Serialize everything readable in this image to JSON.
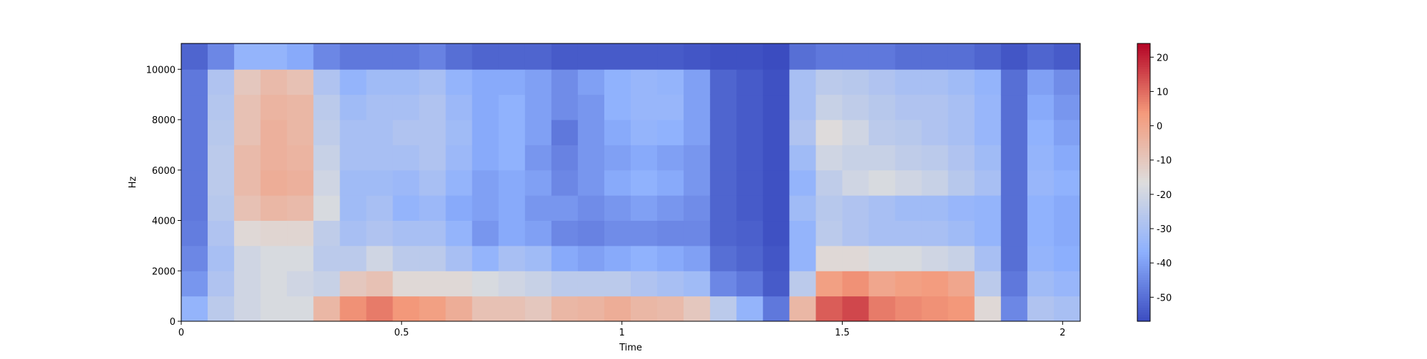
{
  "chart_data": {
    "type": "spectrogram",
    "xlabel": "Time",
    "ylabel": "Hz",
    "colormap": "coolwarm",
    "xlim": [
      0,
      2.04
    ],
    "xticks": [
      0,
      0.5,
      1,
      1.5,
      2
    ],
    "ylim": [
      0,
      11025
    ],
    "yticks": [
      0,
      2000,
      4000,
      6000,
      8000,
      10000
    ],
    "x": [
      0.03,
      0.09,
      0.15,
      0.21,
      0.27,
      0.33,
      0.39,
      0.45,
      0.51,
      0.57,
      0.63,
      0.69,
      0.75,
      0.81,
      0.87,
      0.93,
      0.99,
      1.05,
      1.11,
      1.17,
      1.23,
      1.29,
      1.35,
      1.41,
      1.47,
      1.53,
      1.59,
      1.65,
      1.71,
      1.77,
      1.83,
      1.89,
      1.95,
      2.01
    ],
    "y": [
      500,
      1500,
      2500,
      3500,
      4500,
      5500,
      6500,
      7500,
      8500,
      9500,
      10500
    ],
    "values": [
      [
        -35,
        -42,
        -45,
        -47,
        -48,
        -48,
        -48,
        -48,
        -48,
        -48,
        -52
      ],
      [
        -25,
        -28,
        -30,
        -28,
        -26,
        -25,
        -25,
        -26,
        -27,
        -28,
        -45
      ],
      [
        -20,
        -20,
        -20,
        -15,
        -8,
        -6,
        -6,
        -8,
        -8,
        -10,
        -35
      ],
      [
        -18,
        -18,
        -18,
        -14,
        -5,
        -2,
        -3,
        -3,
        -4,
        -6,
        -35
      ],
      [
        -18,
        -20,
        -18,
        -14,
        -6,
        -3,
        -4,
        -5,
        -5,
        -8,
        -38
      ],
      [
        -5,
        -22,
        -25,
        -24,
        -18,
        -20,
        -22,
        -24,
        -25,
        -28,
        -45
      ],
      [
        5,
        -10,
        -25,
        -30,
        -32,
        -32,
        -30,
        -30,
        -32,
        -35,
        -48
      ],
      [
        8,
        -8,
        -20,
        -28,
        -30,
        -32,
        -30,
        -30,
        -30,
        -32,
        -48
      ],
      [
        4,
        -15,
        -25,
        -30,
        -35,
        -33,
        -30,
        -28,
        -30,
        -32,
        -48
      ],
      [
        2,
        -15,
        -25,
        -30,
        -33,
        -30,
        -28,
        -28,
        -28,
        -30,
        -46
      ],
      [
        -2,
        -15,
        -30,
        -35,
        -38,
        -35,
        -33,
        -32,
        -33,
        -35,
        -50
      ],
      [
        -8,
        -18,
        -35,
        -42,
        -40,
        -40,
        -38,
        -38,
        -38,
        -38,
        -52
      ],
      [
        -8,
        -20,
        -30,
        -38,
        -38,
        -38,
        -36,
        -36,
        -36,
        -38,
        -52
      ],
      [
        -10,
        -22,
        -32,
        -40,
        -42,
        -40,
        -42,
        -40,
        -40,
        -40,
        -52
      ],
      [
        -5,
        -25,
        -38,
        -45,
        -42,
        -45,
        -46,
        -48,
        -44,
        -44,
        -54
      ],
      [
        -4,
        -25,
        -40,
        -46,
        -44,
        -42,
        -42,
        -42,
        -42,
        -40,
        -54
      ],
      [
        -2,
        -25,
        -38,
        -44,
        -42,
        -38,
        -40,
        -38,
        -36,
        -36,
        -54
      ],
      [
        -5,
        -28,
        -36,
        -44,
        -40,
        -36,
        -38,
        -35,
        -34,
        -34,
        -54
      ],
      [
        -6,
        -30,
        -38,
        -45,
        -42,
        -38,
        -40,
        -36,
        -34,
        -35,
        -54
      ],
      [
        -10,
        -32,
        -40,
        -45,
        -44,
        -42,
        -42,
        -40,
        -40,
        -40,
        -55
      ],
      [
        -25,
        -45,
        -50,
        -52,
        -52,
        -52,
        -52,
        -52,
        -52,
        -52,
        -56
      ],
      [
        -35,
        -48,
        -52,
        -53,
        -54,
        -54,
        -54,
        -54,
        -54,
        -54,
        -56
      ],
      [
        -48,
        -54,
        -55,
        -56,
        -56,
        -56,
        -56,
        -56,
        -56,
        -56,
        -57
      ],
      [
        -5,
        -25,
        -35,
        -35,
        -32,
        -35,
        -32,
        -28,
        -30,
        -30,
        -50
      ],
      [
        12,
        2,
        -15,
        -25,
        -26,
        -24,
        -20,
        -16,
        -22,
        -25,
        -48
      ],
      [
        15,
        5,
        -15,
        -28,
        -28,
        -20,
        -22,
        -20,
        -24,
        -26,
        -48
      ],
      [
        8,
        0,
        -18,
        -30,
        -30,
        -18,
        -22,
        -25,
        -26,
        -28,
        -48
      ],
      [
        6,
        2,
        -18,
        -30,
        -32,
        -20,
        -24,
        -26,
        -28,
        -30,
        -50
      ],
      [
        5,
        3,
        -20,
        -30,
        -32,
        -22,
        -25,
        -28,
        -28,
        -30,
        -50
      ],
      [
        4,
        0,
        -22,
        -32,
        -34,
        -26,
        -28,
        -30,
        -30,
        -32,
        -50
      ],
      [
        -15,
        -25,
        -30,
        -35,
        -35,
        -30,
        -32,
        -34,
        -34,
        -35,
        -52
      ],
      [
        -45,
        -48,
        -50,
        -50,
        -50,
        -50,
        -50,
        -50,
        -50,
        -50,
        -55
      ],
      [
        -28,
        -32,
        -35,
        -36,
        -36,
        -34,
        -35,
        -36,
        -38,
        -40,
        -52
      ],
      [
        -30,
        -34,
        -37,
        -38,
        -38,
        -36,
        -38,
        -40,
        -42,
        -44,
        -54
      ]
    ],
    "colorbar": {
      "lim": [
        -57,
        24
      ],
      "ticks": [
        -50,
        -40,
        -30,
        -20,
        -10,
        0,
        10,
        20
      ]
    }
  }
}
